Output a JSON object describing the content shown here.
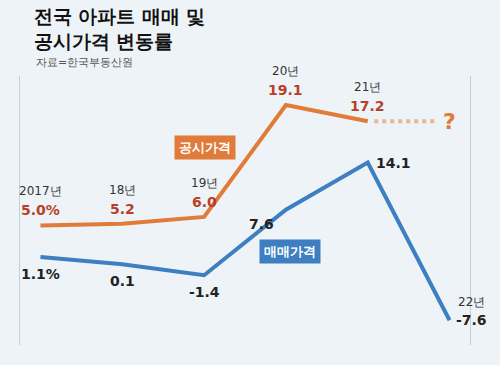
{
  "chart_data": {
    "type": "line",
    "title": "전국 아파트 매매 및\n공시가격 변동률",
    "source": "자료=한국부동산원",
    "categories": [
      "2017년",
      "18년",
      "19년",
      "20년",
      "21년",
      "22년"
    ],
    "series": [
      {
        "name": "공시가격",
        "color": "#e07b39",
        "values": [
          5.0,
          5.2,
          6.0,
          19.1,
          17.2,
          null
        ],
        "value_labels": [
          "5.0%",
          "5.2",
          "6.0",
          "19.1",
          "17.2",
          null
        ]
      },
      {
        "name": "매매가격",
        "color": "#3d7fc1",
        "axis": "y2",
        "values": [
          1.1,
          0.1,
          -1.4,
          7.6,
          14.1,
          -7.6
        ],
        "value_labels": [
          "1.1%",
          "0.1",
          "-1.4",
          "7.6",
          "14.1",
          "-7.6"
        ]
      }
    ],
    "annotations": [
      {
        "text": "?",
        "category": "22년",
        "series": "공시가격"
      }
    ],
    "ylim": [
      -9,
      22.5
    ],
    "y2lim": [
      -11,
      26
    ],
    "data_labels": true,
    "tick_labels": false,
    "grid": false
  }
}
